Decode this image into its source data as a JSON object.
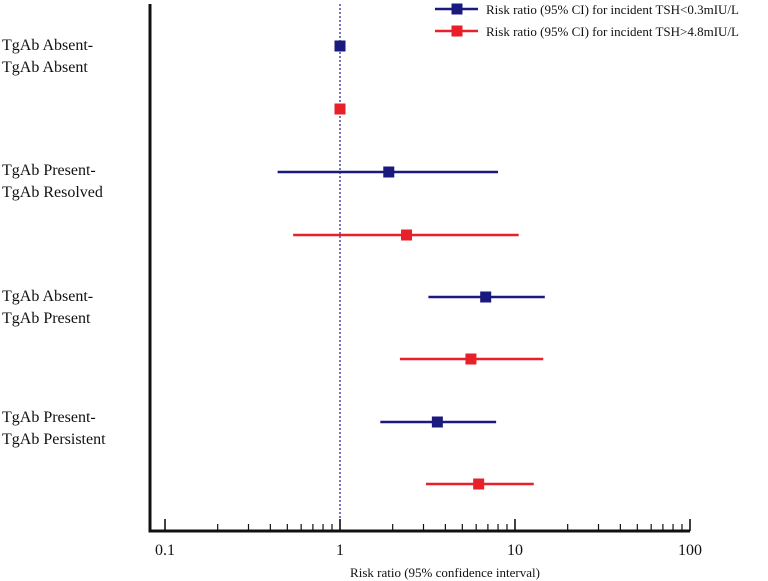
{
  "chart_data": {
    "type": "forest",
    "xlabel": "Risk ratio (95% confidence interval)",
    "xscale": "log",
    "xlim": [
      0.08,
      120
    ],
    "ticks": [
      {
        "value": 0.1,
        "label": "0.1"
      },
      {
        "value": 1,
        "label": "1"
      },
      {
        "value": 10,
        "label": "10"
      },
      {
        "value": 100,
        "label": "100"
      }
    ],
    "reference_line": 1,
    "groups": [
      {
        "line1": "TgAb Absent-",
        "line2": "TgAb Absent"
      },
      {
        "line1": "TgAb Present-",
        "line2": "TgAb Resolved"
      },
      {
        "line1": "TgAb Absent-",
        "line2": "TgAb Present"
      },
      {
        "line1": "TgAb Present-",
        "line2": "TgAb Persistent"
      }
    ],
    "series": [
      {
        "name": "Risk ratio (95% CI) for incident TSH<0.3mIU/L",
        "color": "#1a1a7e",
        "points": [
          {
            "group": 0,
            "rr": 1.0,
            "lo": null,
            "hi": null
          },
          {
            "group": 1,
            "rr": 1.9,
            "lo": 0.44,
            "hi": 8.0
          },
          {
            "group": 2,
            "rr": 6.8,
            "lo": 3.2,
            "hi": 14.8
          },
          {
            "group": 3,
            "rr": 3.6,
            "lo": 1.7,
            "hi": 7.8
          }
        ]
      },
      {
        "name": "Risk ratio (95% CI) for incident TSH>4.8mIU/L",
        "color": "#e8202a",
        "points": [
          {
            "group": 0,
            "rr": 1.0,
            "lo": null,
            "hi": null
          },
          {
            "group": 1,
            "rr": 2.4,
            "lo": 0.54,
            "hi": 10.5
          },
          {
            "group": 2,
            "rr": 5.6,
            "lo": 2.2,
            "hi": 14.5
          },
          {
            "group": 3,
            "rr": 6.2,
            "lo": 3.1,
            "hi": 12.8
          }
        ]
      }
    ]
  }
}
